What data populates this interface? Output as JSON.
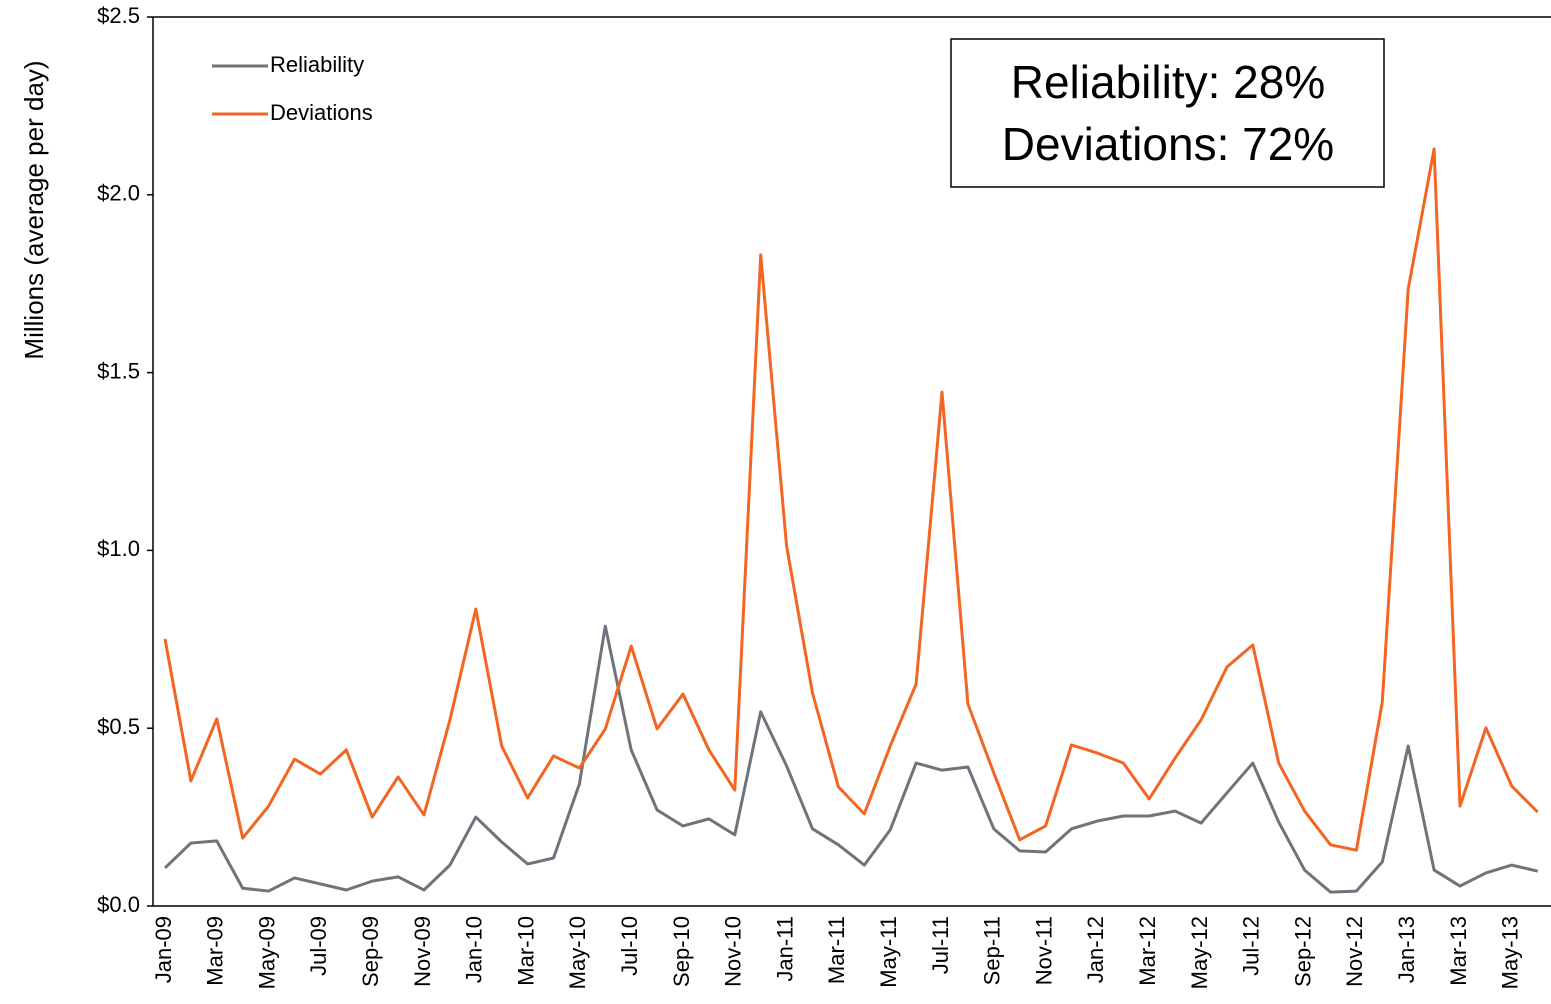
{
  "chart_data": {
    "type": "line",
    "y_label": "Millions (average per day)",
    "categories": [
      "Jan-09",
      null,
      "Mar-09",
      null,
      "May-09",
      null,
      "Jul-09",
      null,
      "Sep-09",
      null,
      "Nov-09",
      null,
      "Jan-10",
      null,
      "Mar-10",
      null,
      "May-10",
      null,
      "Jul-10",
      null,
      "Sep-10",
      null,
      "Nov-10",
      null,
      "Jan-11",
      null,
      "Mar-11",
      null,
      "May-11",
      null,
      "Jul-11",
      null,
      "Sep-11",
      null,
      "Nov-11",
      null,
      "Jan-12",
      null,
      "Mar-12",
      null,
      "May-12",
      null,
      "Jul-12",
      null,
      "Sep-12",
      null,
      "Nov-12",
      null,
      "Jan-13",
      null,
      "Mar-13",
      null,
      "May-13",
      null
    ],
    "series": [
      {
        "name": "Reliability",
        "color": "#6d747c",
        "values": [
          0.107,
          0.177,
          0.183,
          0.05,
          0.042,
          0.079,
          0.062,
          0.045,
          0.07,
          0.082,
          0.045,
          0.115,
          0.25,
          0.18,
          0.118,
          0.135,
          0.343,
          0.787,
          0.439,
          0.27,
          0.225,
          0.245,
          0.2,
          0.546,
          0.394,
          0.217,
          0.172,
          0.115,
          0.214,
          0.402,
          0.382,
          0.391,
          0.217,
          0.155,
          0.152,
          0.217,
          0.239,
          0.253,
          0.253,
          0.267,
          0.233,
          0.318,
          0.402,
          0.236,
          0.101,
          0.039,
          0.042,
          0.124,
          0.45,
          0.101,
          0.056,
          0.093,
          0.115,
          0.098
        ]
      },
      {
        "name": "Deviations",
        "color": "#f26522",
        "values": [
          0.751,
          0.352,
          0.526,
          0.191,
          0.281,
          0.413,
          0.371,
          0.439,
          0.25,
          0.363,
          0.256,
          0.523,
          0.835,
          0.45,
          0.304,
          0.422,
          0.388,
          0.498,
          0.731,
          0.498,
          0.596,
          0.439,
          0.326,
          1.831,
          1.012,
          0.599,
          0.335,
          0.259,
          0.45,
          0.624,
          1.445,
          0.568,
          0.374,
          0.186,
          0.225,
          0.453,
          0.43,
          0.402,
          0.301,
          0.416,
          0.523,
          0.672,
          0.734,
          0.402,
          0.267,
          0.172,
          0.157,
          0.574,
          1.735,
          2.129,
          0.281,
          0.501,
          0.337,
          0.264
        ]
      }
    ],
    "ylim": [
      0,
      2.5
    ],
    "yticks": [
      {
        "value": 0,
        "label": "$0.0"
      },
      {
        "value": 0.5,
        "label": "$0.5"
      },
      {
        "value": 1,
        "label": "$1.0"
      },
      {
        "value": 1.5,
        "label": "$1.5"
      },
      {
        "value": 2,
        "label": "$2.0"
      },
      {
        "value": 2.5,
        "label": "$2.5"
      }
    ],
    "annotations": [
      "Reliability: 28%",
      "Deviations: 72%"
    ],
    "legend": "top-left"
  }
}
